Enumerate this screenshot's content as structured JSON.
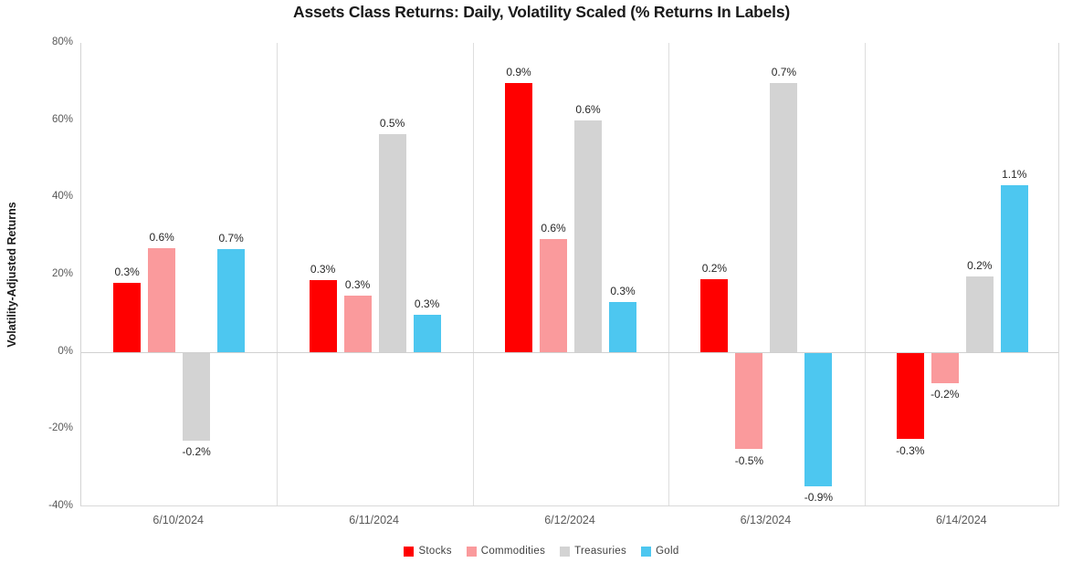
{
  "chart_data": {
    "type": "bar",
    "title": "Assets Class Returns: Daily, Volatility Scaled (% Returns In Labels)",
    "ylabel": "Volatility-Adjusted Returns",
    "categories": [
      "6/10/2024",
      "6/11/2024",
      "6/12/2024",
      "6/13/2024",
      "6/14/2024"
    ],
    "series": [
      {
        "name": "Stocks",
        "color": "#FF0000",
        "return_labels": [
          "0.3%",
          "0.3%",
          "0.9%",
          "0.2%",
          "-0.3%"
        ],
        "volatility_adjusted_values": [
          18.0,
          18.7,
          69.5,
          18.9,
          -22.4
        ]
      },
      {
        "name": "Commodities",
        "color": "#FA9A9C",
        "return_labels": [
          "0.6%",
          "0.3%",
          "0.6%",
          "-0.5%",
          "-0.2%"
        ],
        "volatility_adjusted_values": [
          26.9,
          14.6,
          29.3,
          -25.0,
          -7.8
        ]
      },
      {
        "name": "Treasuries",
        "color": "#D3D3D3",
        "return_labels": [
          "-0.2%",
          "0.5%",
          "0.6%",
          "0.7%",
          "0.2%"
        ],
        "volatility_adjusted_values": [
          -22.7,
          56.5,
          60.0,
          69.5,
          19.6
        ]
      },
      {
        "name": "Gold",
        "color": "#4DC7F0",
        "return_labels": [
          "0.7%",
          "0.3%",
          "0.3%",
          "-0.9%",
          "1.1%"
        ],
        "volatility_adjusted_values": [
          26.7,
          9.6,
          13.0,
          -34.5,
          43.2
        ]
      }
    ],
    "yticks": [
      80,
      60,
      40,
      20,
      0,
      -20,
      -40
    ],
    "ytick_suffix": "%",
    "ylim": [
      -40,
      80
    ],
    "grid": "vertical-category-separators-only",
    "legend_position": "bottom"
  }
}
